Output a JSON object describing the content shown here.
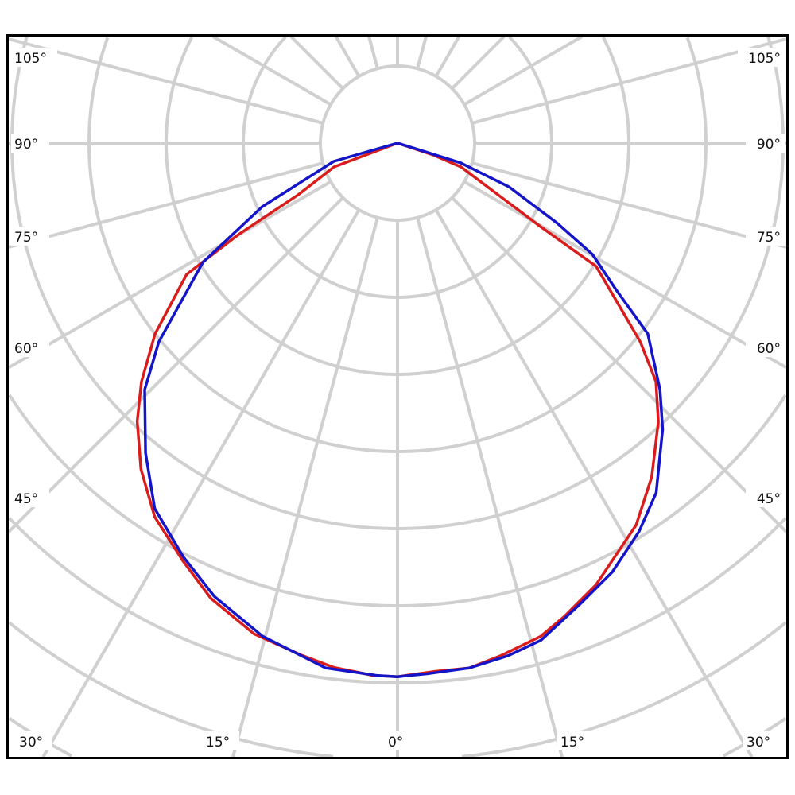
{
  "chart_data": {
    "type": "polar",
    "title": "",
    "angle_unit": "degrees",
    "angle_zero": "down",
    "angle_grid_step": 15,
    "radial_grid_step": 1,
    "radial_labels": false,
    "grid": true,
    "grid_color": "#d0d0d0",
    "angle_tick_labels": {
      "left": [
        "105°",
        "90°",
        "75°",
        "60°",
        "45°"
      ],
      "right": [
        "105°",
        "90°",
        "75°",
        "60°",
        "45°"
      ],
      "bottom": [
        "30°",
        "15°",
        "0°",
        "15°",
        "30°"
      ]
    },
    "series": [
      {
        "color": "#d91c1c",
        "points": [
          [
            -90,
            0
          ],
          [
            -69.4,
            0.88
          ],
          [
            -62.5,
            1.45
          ],
          [
            -60.1,
            2.38
          ],
          [
            -58.1,
            3.22
          ],
          [
            -51.8,
            4.0
          ],
          [
            -47.0,
            4.54
          ],
          [
            -43.1,
            4.94
          ],
          [
            -38.2,
            5.38
          ],
          [
            -33.0,
            5.78
          ],
          [
            -27.2,
            6.09
          ],
          [
            -22.3,
            6.38
          ],
          [
            -16.3,
            6.63
          ],
          [
            -10.5,
            6.76
          ],
          [
            -6.9,
            6.85
          ],
          [
            -2.6,
            6.91
          ],
          [
            0,
            6.92
          ],
          [
            3.9,
            6.87
          ],
          [
            7.8,
            6.87
          ],
          [
            11.4,
            6.78
          ],
          [
            16.2,
            6.66
          ],
          [
            19.4,
            6.51
          ],
          [
            24.2,
            6.28
          ],
          [
            32.0,
            5.84
          ],
          [
            37.3,
            5.44
          ],
          [
            43.1,
            4.95
          ],
          [
            47.3,
            4.56
          ],
          [
            50.7,
            4.07
          ],
          [
            58.2,
            3.03
          ],
          [
            59.7,
            2.15
          ],
          [
            63.4,
            1.38
          ],
          [
            69.4,
            0.88
          ],
          [
            71.6,
            0.49
          ],
          [
            90,
            0
          ]
        ]
      },
      {
        "color": "#1414c8",
        "points": [
          [
            -90,
            0
          ],
          [
            -74.0,
            0.86
          ],
          [
            -64.8,
            1.94
          ],
          [
            -58.5,
            2.96
          ],
          [
            -50.2,
            4.03
          ],
          [
            -45.7,
            4.58
          ],
          [
            -39.1,
            5.18
          ],
          [
            -33.6,
            5.69
          ],
          [
            -27.4,
            6.04
          ],
          [
            -22.0,
            6.34
          ],
          [
            -15.3,
            6.63
          ],
          [
            -7.8,
            6.87
          ],
          [
            -2.1,
            6.91
          ],
          [
            0,
            6.92
          ],
          [
            3.4,
            6.89
          ],
          [
            7.8,
            6.87
          ],
          [
            12.2,
            6.8
          ],
          [
            16.1,
            6.71
          ],
          [
            21.6,
            6.43
          ],
          [
            26.6,
            6.22
          ],
          [
            31.9,
            5.93
          ],
          [
            36.5,
            5.64
          ],
          [
            42.8,
            5.06
          ],
          [
            46.8,
            4.67
          ],
          [
            52.7,
            4.08
          ],
          [
            56.1,
            3.42
          ],
          [
            60.3,
            2.91
          ],
          [
            63.4,
            2.31
          ],
          [
            68.6,
            1.55
          ],
          [
            72.6,
            0.86
          ],
          [
            90,
            0
          ]
        ]
      }
    ]
  }
}
